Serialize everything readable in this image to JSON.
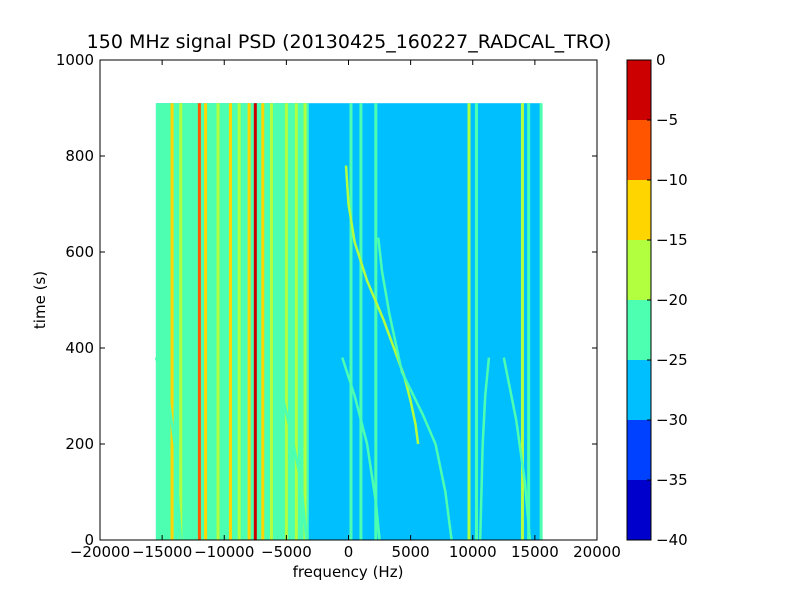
{
  "chart_data": {
    "type": "heatmap",
    "title": "150 MHz signal PSD (20130425_160227_RADCAL_TRO)",
    "xlabel": "frequency (Hz)",
    "ylabel": "time (s)",
    "xlim": [
      -20000,
      20000
    ],
    "ylim": [
      0,
      1000
    ],
    "x_ticks": [
      -20000,
      -15000,
      -10000,
      -5000,
      0,
      5000,
      10000,
      15000,
      20000
    ],
    "x_tick_labels": [
      "−20000",
      "−15000",
      "−10000",
      "−5000",
      "0",
      "5000",
      "10000",
      "15000",
      "20000"
    ],
    "y_ticks": [
      0,
      200,
      400,
      600,
      800,
      1000
    ],
    "y_tick_labels": [
      "0",
      "200",
      "400",
      "600",
      "800",
      "1000"
    ],
    "data_extent": {
      "x": [
        -15500,
        15500
      ],
      "y": [
        0,
        910
      ]
    },
    "colorbar": {
      "levels": [
        -40,
        -35,
        -30,
        -25,
        -20,
        -15,
        -10,
        -5,
        0
      ],
      "tick_labels": [
        "−40",
        "−35",
        "−30",
        "−25",
        "−20",
        "−15",
        "−10",
        "−5",
        "0"
      ],
      "colors": [
        "#0000cc",
        "#0040ff",
        "#00bfff",
        "#4dffb0",
        "#b2ff3f",
        "#ffd500",
        "#ff5500",
        "#cc0000"
      ]
    },
    "background_level": -27.5,
    "left_band": {
      "x": [
        -15500,
        -3200
      ],
      "level": -22.5
    },
    "vertical_lines": [
      {
        "x": -14200,
        "level": -12.5
      },
      {
        "x": -13500,
        "level": -17.5
      },
      {
        "x": -12000,
        "level": -7.5
      },
      {
        "x": -11500,
        "level": -12.5
      },
      {
        "x": -10500,
        "level": -17.5
      },
      {
        "x": -9500,
        "level": -12.5
      },
      {
        "x": -8800,
        "level": -17.5
      },
      {
        "x": -8000,
        "level": -12.5
      },
      {
        "x": -7500,
        "level": -2.5
      },
      {
        "x": -6900,
        "level": -12.5
      },
      {
        "x": -6200,
        "level": -17.5
      },
      {
        "x": -5000,
        "level": -17.5
      },
      {
        "x": -4200,
        "level": -17.5
      },
      {
        "x": -3500,
        "level": -17.5
      },
      {
        "x": 200,
        "level": -22.5
      },
      {
        "x": 1000,
        "level": -22.5
      },
      {
        "x": 2200,
        "level": -22.5
      },
      {
        "x": 9700,
        "level": -17.5
      },
      {
        "x": 10300,
        "level": -22.5
      },
      {
        "x": 14000,
        "level": -17.5
      },
      {
        "x": 14500,
        "level": -22.5
      },
      {
        "x": 15500,
        "level": -22.5
      }
    ],
    "tracks": [
      {
        "level": -17.5,
        "points": [
          [
            -200,
            780
          ],
          [
            0,
            700
          ],
          [
            500,
            620
          ],
          [
            1500,
            540
          ],
          [
            2800,
            460
          ],
          [
            3800,
            390
          ],
          [
            4500,
            340
          ],
          [
            5000,
            290
          ],
          [
            5400,
            240
          ],
          [
            5600,
            200
          ]
        ]
      },
      {
        "level": -22.5,
        "points": [
          [
            2400,
            630
          ],
          [
            2700,
            560
          ],
          [
            3300,
            470
          ],
          [
            4300,
            350
          ],
          [
            6000,
            260
          ],
          [
            7000,
            200
          ],
          [
            7800,
            100
          ],
          [
            8300,
            0
          ]
        ]
      },
      {
        "level": -22.5,
        "points": [
          [
            -5500,
            320
          ],
          [
            -4600,
            220
          ],
          [
            -3800,
            120
          ],
          [
            -3400,
            0
          ]
        ]
      },
      {
        "level": -22.5,
        "points": [
          [
            -500,
            380
          ],
          [
            500,
            300
          ],
          [
            1500,
            200
          ],
          [
            2200,
            80
          ],
          [
            2500,
            0
          ]
        ]
      },
      {
        "level": -22.5,
        "points": [
          [
            -15500,
            380
          ],
          [
            -14500,
            300
          ],
          [
            -14000,
            200
          ],
          [
            -13500,
            0
          ]
        ]
      },
      {
        "level": -22.5,
        "points": [
          [
            12500,
            380
          ],
          [
            13500,
            250
          ],
          [
            14200,
            120
          ],
          [
            14600,
            0
          ]
        ]
      },
      {
        "level": -22.5,
        "points": [
          [
            11300,
            380
          ],
          [
            11000,
            300
          ],
          [
            10800,
            200
          ],
          [
            10600,
            0
          ]
        ]
      }
    ]
  }
}
